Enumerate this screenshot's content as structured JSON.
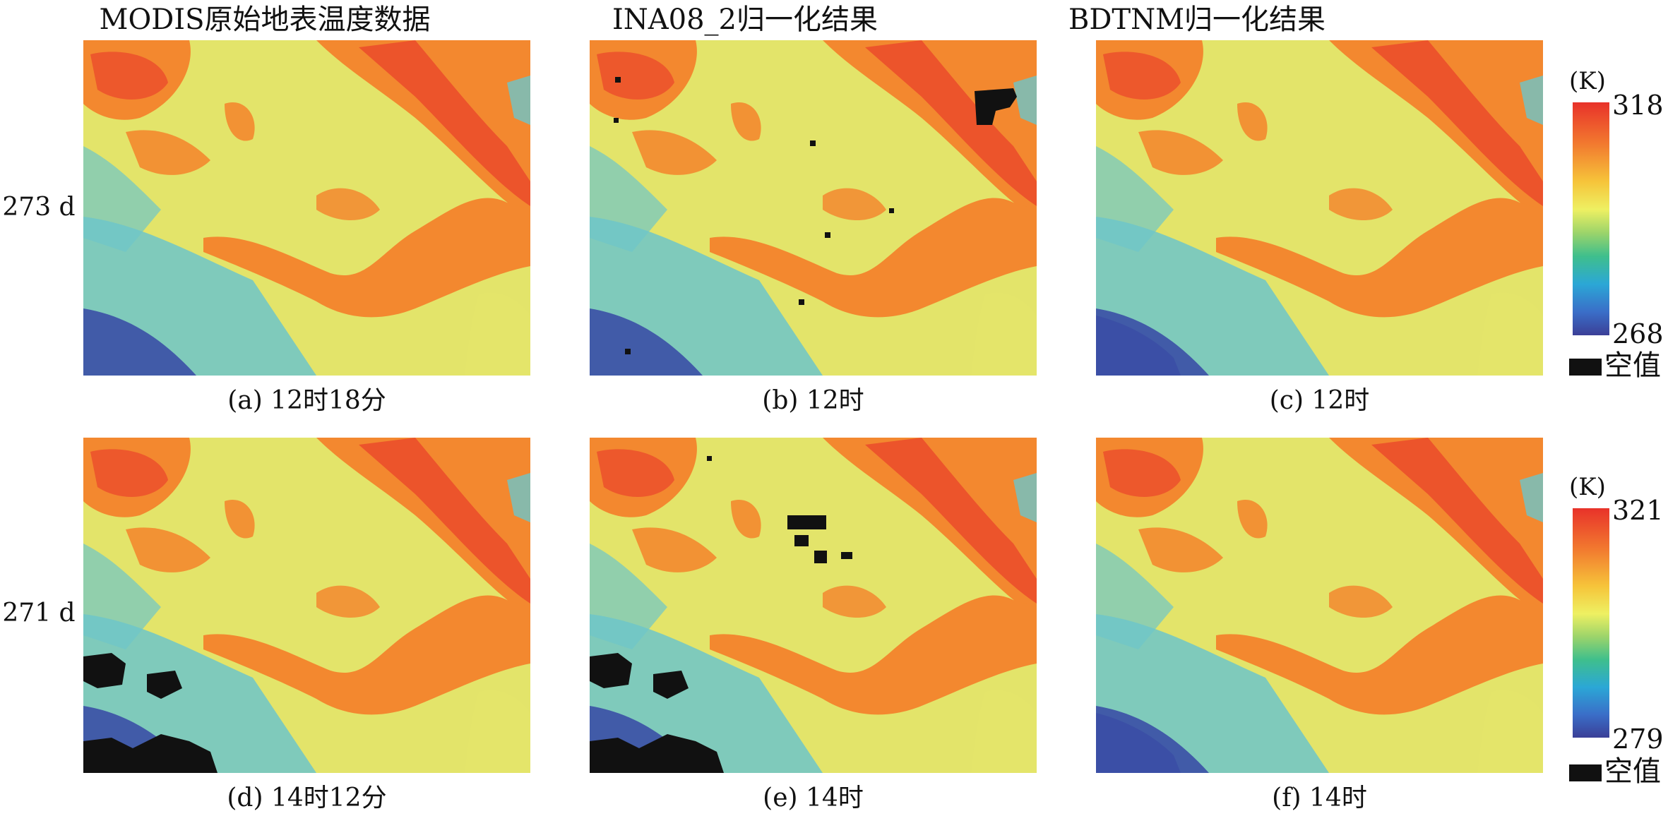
{
  "columns": [
    {
      "title": "MODIS原始地表温度数据"
    },
    {
      "title": "INA08_2归一化结果"
    },
    {
      "title": "BDTNM归一化结果"
    }
  ],
  "rows": [
    {
      "label": "273 d",
      "colorbar": {
        "unit": "(K)",
        "max": "318",
        "min": "268",
        "null_label": "空值"
      },
      "captions": [
        "(a) 12时18分",
        "(b) 12时",
        "(c) 12时"
      ]
    },
    {
      "label": "271 d",
      "colorbar": {
        "unit": "(K)",
        "max": "321",
        "min": "279",
        "null_label": "空值"
      },
      "captions": [
        "(d) 14时12分",
        "(e) 14时",
        "(f) 14时"
      ]
    }
  ],
  "colors": {
    "hot": "#e8322a",
    "warm": "#f3882f",
    "mild": "#e3e46a",
    "cool": "#6dc6c9",
    "cold": "#3b4fa6",
    "null": "#111111"
  }
}
